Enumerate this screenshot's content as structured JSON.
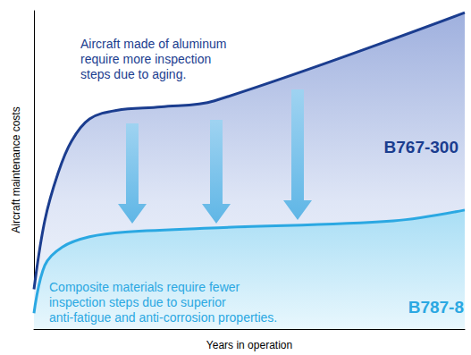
{
  "chart_data": {
    "type": "line",
    "xlabel": "Years in operation",
    "ylabel": "Aircraft maintenance costs",
    "xlim": [
      0,
      100
    ],
    "ylim": [
      0,
      100
    ],
    "tick_labels": false,
    "grid": false,
    "series": [
      {
        "name": "B767-300",
        "color": "#1b3d8f",
        "x": [
          0,
          2.5,
          5.6,
          8.7,
          12.9,
          19.1,
          29.5,
          41.9,
          100
        ],
        "values": [
          12.5,
          34,
          49,
          59,
          66,
          68.7,
          69.8,
          71.7,
          99.4
        ],
        "annotation": "Aircraft made of aluminum require more inspection steps due to aging."
      },
      {
        "name": "B787-8",
        "color": "#2ba8e2",
        "x": [
          0,
          2.5,
          6.6,
          12.9,
          21.2,
          44,
          83.4,
          100
        ],
        "values": [
          5,
          20,
          25.8,
          29,
          30.5,
          31.9,
          34,
          37.4
        ],
        "annotation": "Composite materials require fewer inspection steps due to superior anti-fatigue and anti-corrosion properties."
      }
    ]
  }
}
